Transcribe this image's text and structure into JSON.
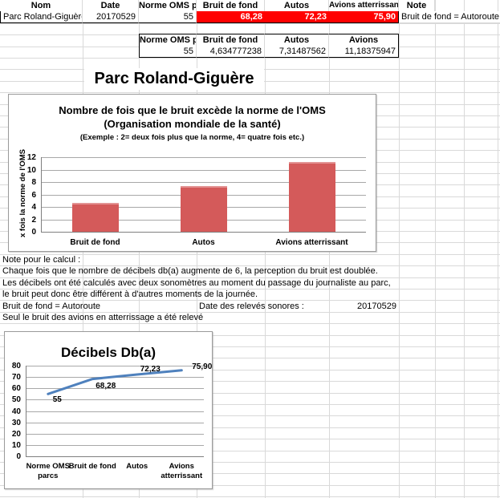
{
  "sheet_title": "Parc Roland-Giguère",
  "table1": {
    "headers": [
      "Nom",
      "Date",
      "Norme OMS parc",
      "Bruit de fond",
      "Autos",
      "Avions atterrissant",
      "Note"
    ],
    "row": {
      "nom": "Parc Roland-Giguère",
      "date": "20170529",
      "norme_oms": "55",
      "bruit_de_fond": "68,28",
      "autos": "72,23",
      "avions": "75,90",
      "note": "Bruit de fond = Autoroute"
    }
  },
  "table2": {
    "headers": [
      "Norme OMS parc",
      "Bruit de fond",
      "Autos",
      "Avions"
    ],
    "values": [
      "55",
      "4,634777238",
      "7,31487562",
      "11,18375947"
    ]
  },
  "notes": {
    "line1": "Note pour le calcul :",
    "line2": "Chaque fois que le nombre de décibels db(a) augmente de 6, la perception du bruit est doublée.",
    "line3": "Les décibels ont été calculés avec deux sonomètres au moment du passage du journaliste au parc,",
    "line4": "le bruit peut donc être différent à d'autres moments de la journée.",
    "line5a": "Bruit de fond = Autoroute",
    "line5b": "Date des relevés sonores :",
    "line5c": "20170529",
    "line6": "Seul le bruit des avions en atterrissage a été relevé"
  },
  "chart_data": [
    {
      "type": "bar",
      "title_lines": [
        "Nombre de fois que le bruit excède la norme de l'OMS",
        "(Organisation mondiale de la santé)"
      ],
      "subtitle": "(Exemple : 2= deux fois plus que la norme, 4= quatre fois etc.)",
      "categories": [
        "Bruit de fond",
        "Autos",
        "Avions atterrissant"
      ],
      "values": [
        4.634777238,
        7.31487562,
        11.18375947
      ],
      "xlabel": "",
      "ylabel": "x fois la norme de l'OMS",
      "ylim": [
        0,
        12
      ],
      "yticks": [
        0,
        2,
        4,
        6,
        8,
        10,
        12
      ],
      "grid": true,
      "legend": false,
      "bar_color": "#d45a5a"
    },
    {
      "type": "line",
      "title": "Décibels Db(a)",
      "categories": [
        "Norme OMS parcs",
        "Bruit de fond",
        "Autos",
        "Avions atterrissant"
      ],
      "values": [
        55,
        68.28,
        72.23,
        75.9
      ],
      "data_labels": [
        "55",
        "68,28",
        "72,23",
        "75,90"
      ],
      "xlabel": "",
      "ylabel": "",
      "ylim": [
        0,
        80
      ],
      "yticks": [
        0,
        10,
        20,
        30,
        40,
        50,
        60,
        70,
        80
      ],
      "grid": true,
      "legend": false,
      "line_color": "#4f81bd"
    }
  ],
  "colors": {
    "alert_fill": "#ff0000",
    "alert_text": "#ffffff",
    "bar": "#d45a5a",
    "line": "#4f81bd",
    "sheet_gridline": "#d9d9d9",
    "chart_gridline": "#a8a8a8"
  }
}
